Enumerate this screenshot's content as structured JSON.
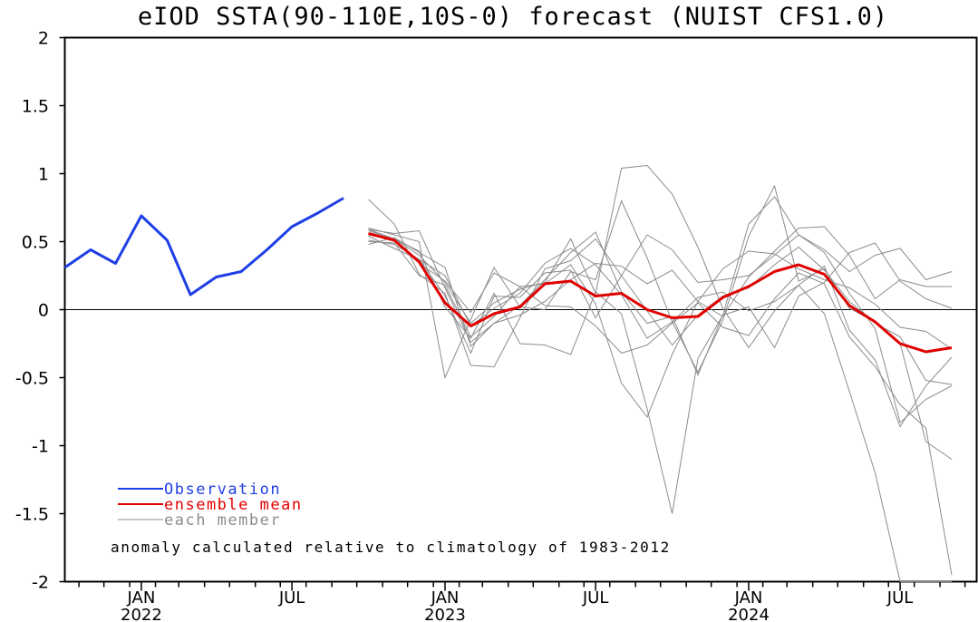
{
  "chart_data": {
    "type": "line",
    "title": "eIOD SSTA(90-110E,10S-0) forecast (NUIST CFS1.0)",
    "ylim": [
      -2,
      2
    ],
    "yticks": [
      "2",
      "1.5",
      "1",
      "0.5",
      "0",
      "-0.5",
      "-1",
      "-1.5",
      "-2"
    ],
    "ytick_values": [
      2,
      1.5,
      1,
      0.5,
      0,
      -0.5,
      -1,
      -1.5,
      -2
    ],
    "xlim": [
      "2021-10-15",
      "2024-10-15"
    ],
    "xticks": [
      {
        "date": "2022-01-15",
        "month": "JAN",
        "year": "2022"
      },
      {
        "date": "2022-07-15",
        "month": "JUL",
        "year": ""
      },
      {
        "date": "2023-01-15",
        "month": "JAN",
        "year": "2023"
      },
      {
        "date": "2023-07-15",
        "month": "JUL",
        "year": ""
      },
      {
        "date": "2024-01-15",
        "month": "JAN",
        "year": "2024"
      },
      {
        "date": "2024-07-15",
        "month": "JUL",
        "year": ""
      }
    ],
    "observation": {
      "name": "Observation",
      "color": "#1f3fe6",
      "x": [
        "2021-10-15",
        "2021-11-15",
        "2021-12-15",
        "2022-01-15",
        "2022-02-15",
        "2022-03-15",
        "2022-04-15",
        "2022-05-15",
        "2022-06-15",
        "2022-07-15",
        "2022-08-15",
        "2022-09-15"
      ],
      "values": [
        0.31,
        0.44,
        0.34,
        0.69,
        0.51,
        0.11,
        0.24,
        0.28,
        0.44,
        0.61,
        0.71,
        0.82
      ]
    },
    "ensemble_mean": {
      "name": "ensemble mean",
      "color": "#e00000",
      "x": [
        "2022-10-15",
        "2022-11-15",
        "2022-12-15",
        "2023-01-15",
        "2023-02-15",
        "2023-03-15",
        "2023-04-15",
        "2023-05-15",
        "2023-06-15",
        "2023-07-15",
        "2023-08-15",
        "2023-09-15",
        "2023-10-15",
        "2023-11-15",
        "2023-12-15",
        "2024-01-15",
        "2024-02-15",
        "2024-03-15",
        "2024-04-15",
        "2024-05-15",
        "2024-06-15",
        "2024-07-15",
        "2024-08-15",
        "2024-09-15"
      ],
      "values": [
        0.56,
        0.51,
        0.35,
        0.05,
        -0.12,
        -0.03,
        0.02,
        0.19,
        0.21,
        0.1,
        0.12,
        0.0,
        -0.06,
        -0.05,
        0.09,
        0.17,
        0.28,
        0.33,
        0.26,
        0.03,
        -0.09,
        -0.25,
        -0.31,
        -0.28
      ]
    },
    "members_name": "each member",
    "members_color": "#8c8c8c",
    "members": [
      [
        0.81,
        0.63,
        0.26,
        0.12,
        -0.41,
        -0.42,
        -0.06,
        0.3,
        0.36,
        0.52,
        0.25,
        -0.01,
        -0.26,
        -0.04,
        0.1,
        0.16,
        0.33,
        0.46,
        0.29,
        0.06,
        -0.1,
        -0.2,
        -0.52,
        -0.55
      ],
      [
        0.6,
        0.55,
        0.5,
        -0.5,
        -0.07,
        0.31,
        0.02,
        0.0,
        0.28,
        0.22,
        0.8,
        0.38,
        -0.09,
        -0.46,
        -0.08,
        0.54,
        0.91,
        0.21,
        0.3,
        0.01,
        -0.09,
        -0.25,
        -0.97,
        -1.1
      ],
      [
        0.48,
        0.53,
        0.42,
        0.31,
        -0.27,
        -0.1,
        0.03,
        0.22,
        0.42,
        0.57,
        0.13,
        -0.1,
        -0.05,
        -0.48,
        -0.04,
        0.63,
        0.83,
        0.55,
        0.42,
        0.12,
        -0.14,
        -0.83,
        -0.66,
        -0.56
      ],
      [
        0.51,
        0.48,
        0.37,
        0.1,
        -0.32,
        0.1,
        0.09,
        0.27,
        0.29,
        -0.06,
        0.25,
        0.55,
        0.44,
        0.2,
        0.22,
        0.25,
        0.4,
        0.55,
        0.44,
        0.28,
        0.4,
        0.45,
        0.22,
        0.28
      ],
      [
        0.59,
        0.52,
        0.43,
        0.02,
        -0.21,
        0.12,
        -0.25,
        -0.26,
        -0.33,
        0.13,
        -0.03,
        -0.73,
        -1.5,
        -0.36,
        -0.04,
        0.02,
        -0.28,
        0.1,
        0.2,
        0.42,
        0.49,
        0.21,
        0.08,
        0.01
      ],
      [
        0.5,
        0.49,
        0.25,
        0.18,
        -0.2,
        -0.05,
        0.17,
        0.03,
        0.02,
        -0.12,
        -0.32,
        -0.26,
        -0.1,
        0.05,
        -0.13,
        -0.19,
        0.08,
        0.27,
        0.19,
        -0.2,
        -0.42,
        -0.7,
        -0.87,
        -1.95
      ],
      [
        0.59,
        0.56,
        0.58,
        0.16,
        -0.24,
        -0.1,
        -0.04,
        0.06,
        0.22,
        0.34,
        0.32,
        0.19,
        0.29,
        0.06,
        -0.05,
        0.24,
        0.43,
        0.6,
        0.61,
        0.4,
        0.08,
        0.22,
        0.17,
        0.17
      ],
      [
        0.54,
        0.45,
        0.37,
        0.25,
        -0.12,
        0.01,
        0.12,
        0.34,
        0.45,
        0.33,
        0.11,
        -0.21,
        -0.09,
        0.09,
        0.13,
        -0.01,
        0.06,
        0.18,
        0.32,
        -0.15,
        -0.37,
        -0.86,
        -0.56,
        -0.35
      ],
      [
        0.55,
        0.51,
        0.34,
        0.21,
        -0.02,
        0.27,
        0.17,
        0.19,
        0.33,
        0.04,
        -0.54,
        -0.79,
        -0.33,
        0.06,
        0.3,
        0.43,
        0.41,
        0.3,
        0.22,
        0.16,
        0.04,
        -0.13,
        -0.16,
        -0.29
      ],
      [
        0.58,
        0.52,
        0.4,
        0.2,
        -0.1,
        0.05,
        0.15,
        0.2,
        0.52,
        0.12,
        1.04,
        1.06,
        0.85,
        0.46,
        0.01,
        -0.28,
        -0.01,
        0.18,
        -0.03,
        -0.6,
        -1.2,
        -2.0,
        -2.0,
        -2.0
      ]
    ],
    "legend": [
      {
        "label": "Observation",
        "color": "#1f3fe6"
      },
      {
        "label": "ensemble mean",
        "color": "#e00000"
      },
      {
        "label": "each member",
        "color": "#8c8c8c"
      }
    ],
    "annotation": "anomaly calculated relative to climatology of 1983-2012",
    "grid": false
  }
}
